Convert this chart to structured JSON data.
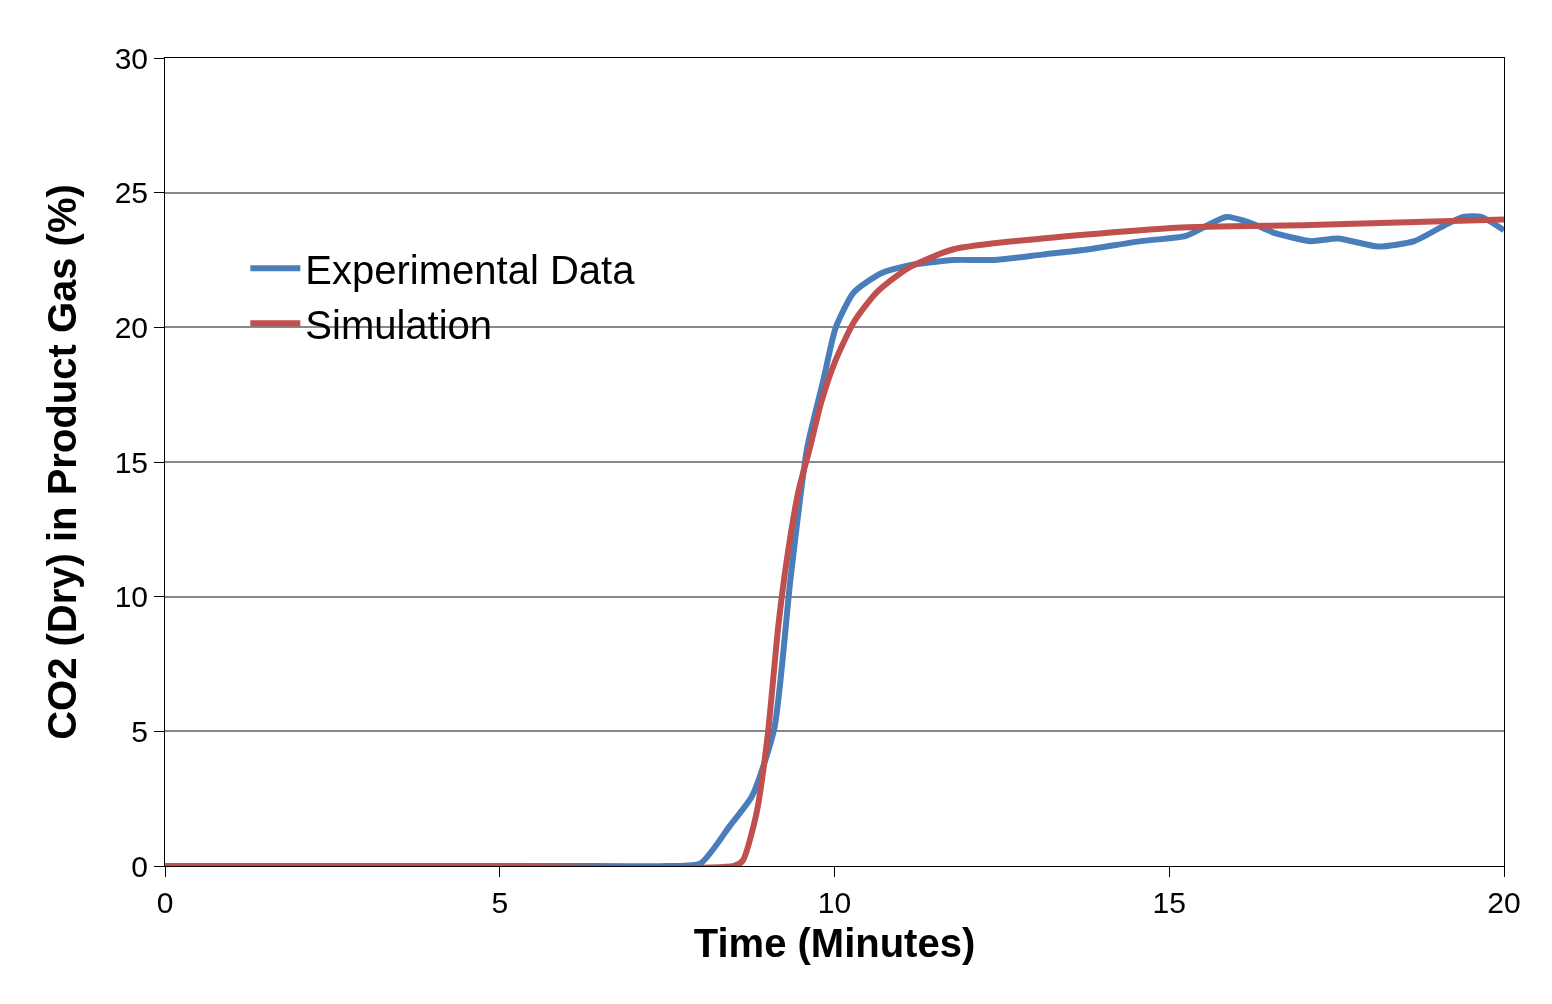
{
  "chart_data": {
    "type": "line",
    "xlabel": "Time (Minutes)",
    "ylabel": "CO2 (Dry) in Product Gas (%)",
    "xlim": [
      0,
      20
    ],
    "xticks": [
      0,
      5,
      10,
      15,
      20
    ],
    "ylim": [
      0,
      30
    ],
    "yticks": [
      0,
      5,
      10,
      15,
      20,
      25,
      30
    ],
    "grid": "y",
    "legend": "top left",
    "marker": "none",
    "line_style": "solid",
    "series": [
      {
        "name": "Experimental Data",
        "color": "#4a7ebb",
        "x": [
          0,
          2,
          4,
          6,
          7.5,
          8.0,
          8.44,
          8.77,
          9.1,
          9.34,
          9.59,
          9.83,
          10.02,
          10.29,
          10.69,
          11.11,
          11.78,
          12.38,
          13.1,
          13.8,
          14.58,
          15.25,
          15.58,
          15.85,
          16.19,
          16.58,
          17.12,
          17.52,
          18.12,
          18.66,
          19.12,
          19.39,
          19.66,
          20
        ],
        "values": [
          0,
          0,
          0,
          0,
          0,
          0.1,
          1.5,
          2.6,
          5.1,
          10.6,
          15.5,
          18.0,
          20.0,
          21.3,
          22.0,
          22.3,
          22.5,
          22.5,
          22.7,
          22.9,
          23.2,
          23.4,
          23.8,
          24.1,
          23.9,
          23.5,
          23.2,
          23.3,
          23.0,
          23.2,
          23.8,
          24.1,
          24.1,
          23.6
        ]
      },
      {
        "name": "Simulation",
        "color": "#c0504d",
        "x": [
          0,
          4,
          8.5,
          8.63,
          8.83,
          9.0,
          9.16,
          9.29,
          9.46,
          9.63,
          9.8,
          10.02,
          10.29,
          10.63,
          11.1,
          11.78,
          13.1,
          15.1,
          17.1,
          20
        ],
        "values": [
          0,
          0,
          0,
          0.2,
          1.9,
          4.8,
          8.9,
          11.4,
          13.9,
          15.5,
          17.2,
          18.8,
          20.2,
          21.3,
          22.2,
          22.9,
          23.3,
          23.7,
          23.8,
          24.0
        ]
      }
    ]
  }
}
